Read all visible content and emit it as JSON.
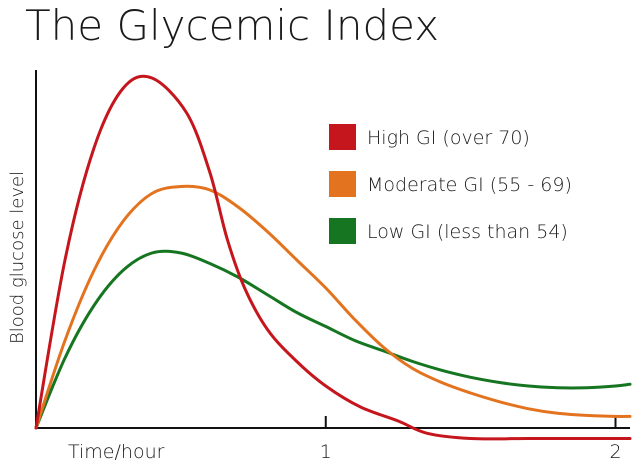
{
  "chart_data": {
    "type": "line",
    "title": "The Glycemic Index",
    "xlabel": "Time/hour",
    "ylabel": "Blood glucose level",
    "xlim": [
      0,
      2.05
    ],
    "ylim": [
      0,
      100
    ],
    "x_ticks": [
      {
        "value": 1,
        "label": "1"
      },
      {
        "value": 2,
        "label": "2"
      }
    ],
    "grid": false,
    "legend_position": "top-right",
    "series": [
      {
        "name": "High GI (over 70)",
        "color": "#c4161c",
        "x": [
          0,
          0.1,
          0.2,
          0.3,
          0.4,
          0.52,
          0.6,
          0.66,
          0.72,
          0.8,
          0.9,
          1.0,
          1.12,
          1.25,
          1.35,
          1.5,
          1.7,
          1.85,
          2.0,
          2.05
        ],
        "y": [
          0,
          48,
          80,
          97,
          100,
          90,
          73,
          54,
          40,
          28,
          19,
          12,
          6,
          2,
          -1.5,
          -3,
          -3,
          -3,
          -3,
          -3
        ]
      },
      {
        "name": "Moderate GI (55 - 69)",
        "color": "#e3731e",
        "x": [
          0,
          0.1,
          0.2,
          0.3,
          0.4,
          0.5,
          0.6,
          0.7,
          0.8,
          0.9,
          1.0,
          1.1,
          1.2,
          1.3,
          1.4,
          1.5,
          1.6,
          1.7,
          1.8,
          1.9,
          2.0,
          2.05
        ],
        "y": [
          0,
          25,
          45,
          59,
          67,
          69,
          68,
          63,
          56,
          48,
          40,
          31,
          23,
          17,
          13,
          10,
          7.5,
          5.5,
          4.2,
          3.6,
          3.3,
          3.3
        ]
      },
      {
        "name": "Low GI (less than 54)",
        "color": "#167520",
        "x": [
          0,
          0.1,
          0.2,
          0.3,
          0.4,
          0.5,
          0.6,
          0.7,
          0.8,
          0.9,
          1.0,
          1.1,
          1.2,
          1.3,
          1.4,
          1.5,
          1.6,
          1.7,
          1.8,
          1.9,
          2.0,
          2.05
        ],
        "y": [
          0,
          20,
          35,
          45,
          50,
          50,
          47,
          43,
          38,
          33,
          29,
          25,
          22,
          19,
          16.5,
          14.5,
          13,
          12,
          11.5,
          11.5,
          12,
          12.5
        ]
      }
    ]
  }
}
